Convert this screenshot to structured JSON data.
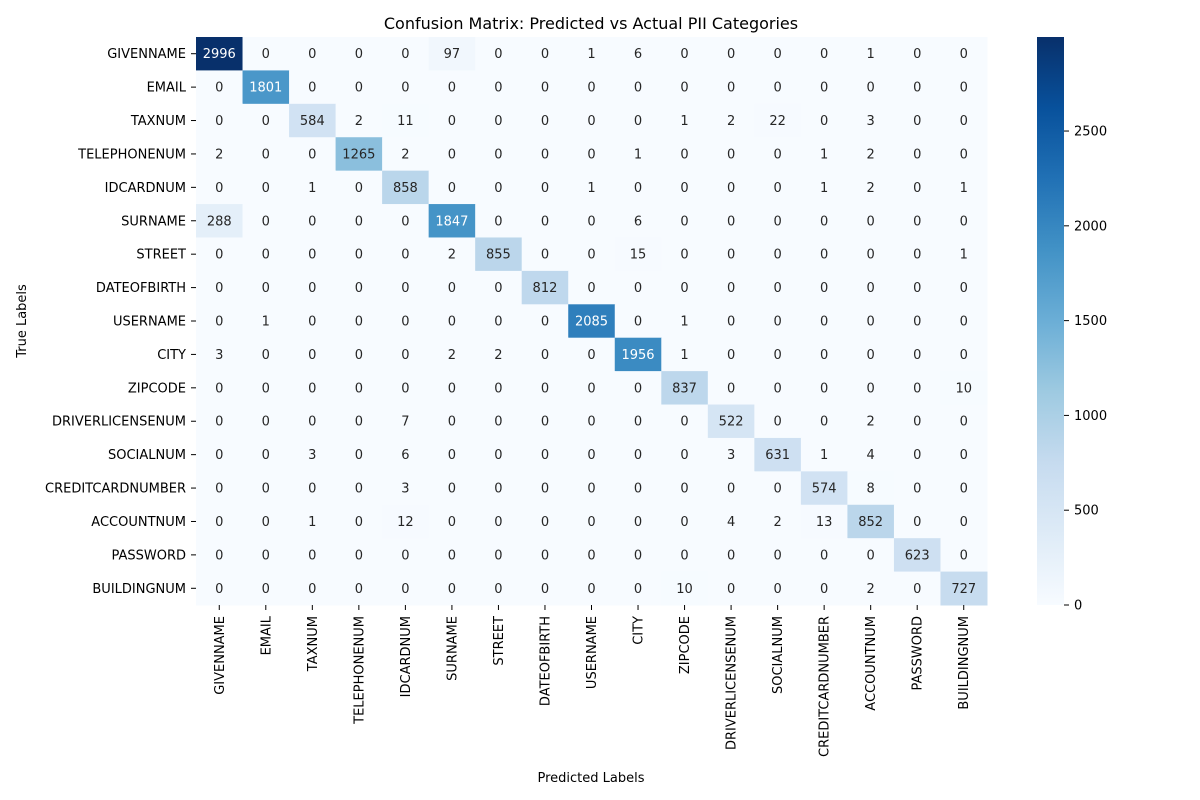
{
  "chart_data": {
    "type": "heatmap",
    "title": "Confusion Matrix: Predicted vs Actual PII Categories",
    "xlabel": "Predicted Labels",
    "ylabel": "True Labels",
    "labels": [
      "GIVENNAME",
      "EMAIL",
      "TAXNUM",
      "TELEPHONENUM",
      "IDCARDNUM",
      "SURNAME",
      "STREET",
      "DATEOFBIRTH",
      "USERNAME",
      "CITY",
      "ZIPCODE",
      "DRIVERLICENSENUM",
      "SOCIALNUM",
      "CREDITCARDNUMBER",
      "ACCOUNTNUM",
      "PASSWORD",
      "BUILDINGNUM"
    ],
    "matrix": [
      [
        2996,
        0,
        0,
        0,
        0,
        97,
        0,
        0,
        1,
        6,
        0,
        0,
        0,
        0,
        1,
        0,
        0
      ],
      [
        0,
        1801,
        0,
        0,
        0,
        0,
        0,
        0,
        0,
        0,
        0,
        0,
        0,
        0,
        0,
        0,
        0
      ],
      [
        0,
        0,
        584,
        2,
        11,
        0,
        0,
        0,
        0,
        0,
        1,
        2,
        22,
        0,
        3,
        0,
        0
      ],
      [
        2,
        0,
        0,
        1265,
        2,
        0,
        0,
        0,
        0,
        1,
        0,
        0,
        0,
        1,
        2,
        0,
        0
      ],
      [
        0,
        0,
        1,
        0,
        858,
        0,
        0,
        0,
        1,
        0,
        0,
        0,
        0,
        1,
        2,
        0,
        1
      ],
      [
        288,
        0,
        0,
        0,
        0,
        1847,
        0,
        0,
        0,
        6,
        0,
        0,
        0,
        0,
        0,
        0,
        0
      ],
      [
        0,
        0,
        0,
        0,
        0,
        2,
        855,
        0,
        0,
        15,
        0,
        0,
        0,
        0,
        0,
        0,
        1
      ],
      [
        0,
        0,
        0,
        0,
        0,
        0,
        0,
        812,
        0,
        0,
        0,
        0,
        0,
        0,
        0,
        0,
        0
      ],
      [
        0,
        1,
        0,
        0,
        0,
        0,
        0,
        0,
        2085,
        0,
        1,
        0,
        0,
        0,
        0,
        0,
        0
      ],
      [
        3,
        0,
        0,
        0,
        0,
        2,
        2,
        0,
        0,
        1956,
        1,
        0,
        0,
        0,
        0,
        0,
        0
      ],
      [
        0,
        0,
        0,
        0,
        0,
        0,
        0,
        0,
        0,
        0,
        837,
        0,
        0,
        0,
        0,
        0,
        10
      ],
      [
        0,
        0,
        0,
        0,
        7,
        0,
        0,
        0,
        0,
        0,
        0,
        522,
        0,
        0,
        2,
        0,
        0
      ],
      [
        0,
        0,
        3,
        0,
        6,
        0,
        0,
        0,
        0,
        0,
        0,
        3,
        631,
        1,
        4,
        0,
        0
      ],
      [
        0,
        0,
        0,
        0,
        3,
        0,
        0,
        0,
        0,
        0,
        0,
        0,
        0,
        574,
        8,
        0,
        0
      ],
      [
        0,
        0,
        1,
        0,
        12,
        0,
        0,
        0,
        0,
        0,
        0,
        4,
        2,
        13,
        852,
        0,
        0
      ],
      [
        0,
        0,
        0,
        0,
        0,
        0,
        0,
        0,
        0,
        0,
        0,
        0,
        0,
        0,
        0,
        623,
        0
      ],
      [
        0,
        0,
        0,
        0,
        0,
        0,
        0,
        0,
        0,
        0,
        10,
        0,
        0,
        0,
        2,
        0,
        727
      ]
    ],
    "colorbar": {
      "min": 0,
      "max": 2996,
      "ticks": [
        0,
        500,
        1000,
        1500,
        2000,
        2500
      ],
      "colormap": "Blues"
    },
    "grid": false
  }
}
